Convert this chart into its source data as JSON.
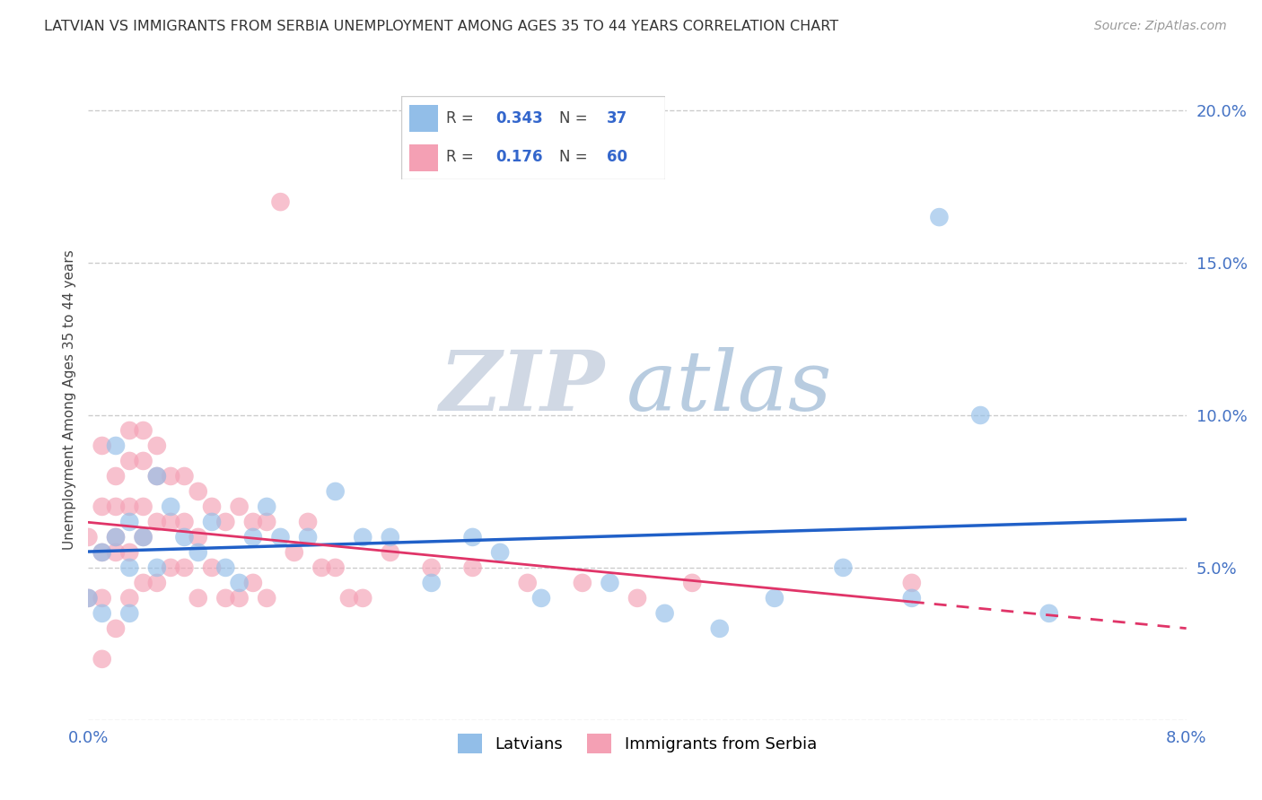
{
  "title": "LATVIAN VS IMMIGRANTS FROM SERBIA UNEMPLOYMENT AMONG AGES 35 TO 44 YEARS CORRELATION CHART",
  "source": "Source: ZipAtlas.com",
  "ylabel": "Unemployment Among Ages 35 to 44 years",
  "xlim": [
    0.0,
    0.08
  ],
  "ylim": [
    0.0,
    0.21
  ],
  "latvian_R": 0.343,
  "latvian_N": 37,
  "serbia_R": 0.176,
  "serbia_N": 60,
  "latvian_color": "#92BEE8",
  "serbia_color": "#F4A0B4",
  "latvian_line_color": "#2060C8",
  "serbia_line_color": "#E03468",
  "latvian_x": [
    0.0,
    0.001,
    0.001,
    0.002,
    0.002,
    0.003,
    0.003,
    0.003,
    0.004,
    0.005,
    0.005,
    0.006,
    0.007,
    0.008,
    0.009,
    0.01,
    0.011,
    0.012,
    0.013,
    0.014,
    0.016,
    0.018,
    0.02,
    0.022,
    0.025,
    0.028,
    0.03,
    0.033,
    0.038,
    0.042,
    0.046,
    0.05,
    0.055,
    0.06,
    0.062,
    0.065,
    0.07
  ],
  "latvian_y": [
    0.04,
    0.055,
    0.035,
    0.06,
    0.09,
    0.065,
    0.05,
    0.035,
    0.06,
    0.08,
    0.05,
    0.07,
    0.06,
    0.055,
    0.065,
    0.05,
    0.045,
    0.06,
    0.07,
    0.06,
    0.06,
    0.075,
    0.06,
    0.06,
    0.045,
    0.06,
    0.055,
    0.04,
    0.045,
    0.035,
    0.03,
    0.04,
    0.05,
    0.04,
    0.165,
    0.1,
    0.035
  ],
  "serbia_x": [
    0.0,
    0.0,
    0.001,
    0.001,
    0.001,
    0.001,
    0.001,
    0.002,
    0.002,
    0.002,
    0.002,
    0.002,
    0.003,
    0.003,
    0.003,
    0.003,
    0.003,
    0.004,
    0.004,
    0.004,
    0.004,
    0.004,
    0.005,
    0.005,
    0.005,
    0.005,
    0.006,
    0.006,
    0.006,
    0.007,
    0.007,
    0.007,
    0.008,
    0.008,
    0.008,
    0.009,
    0.009,
    0.01,
    0.01,
    0.011,
    0.011,
    0.012,
    0.012,
    0.013,
    0.013,
    0.014,
    0.015,
    0.016,
    0.017,
    0.018,
    0.019,
    0.02,
    0.022,
    0.025,
    0.028,
    0.032,
    0.036,
    0.04,
    0.044,
    0.06
  ],
  "serbia_y": [
    0.06,
    0.04,
    0.09,
    0.07,
    0.055,
    0.04,
    0.02,
    0.08,
    0.07,
    0.06,
    0.055,
    0.03,
    0.095,
    0.085,
    0.07,
    0.055,
    0.04,
    0.095,
    0.085,
    0.07,
    0.06,
    0.045,
    0.09,
    0.08,
    0.065,
    0.045,
    0.08,
    0.065,
    0.05,
    0.08,
    0.065,
    0.05,
    0.075,
    0.06,
    0.04,
    0.07,
    0.05,
    0.065,
    0.04,
    0.07,
    0.04,
    0.065,
    0.045,
    0.065,
    0.04,
    0.17,
    0.055,
    0.065,
    0.05,
    0.05,
    0.04,
    0.04,
    0.055,
    0.05,
    0.05,
    0.045,
    0.045,
    0.04,
    0.045,
    0.045
  ]
}
